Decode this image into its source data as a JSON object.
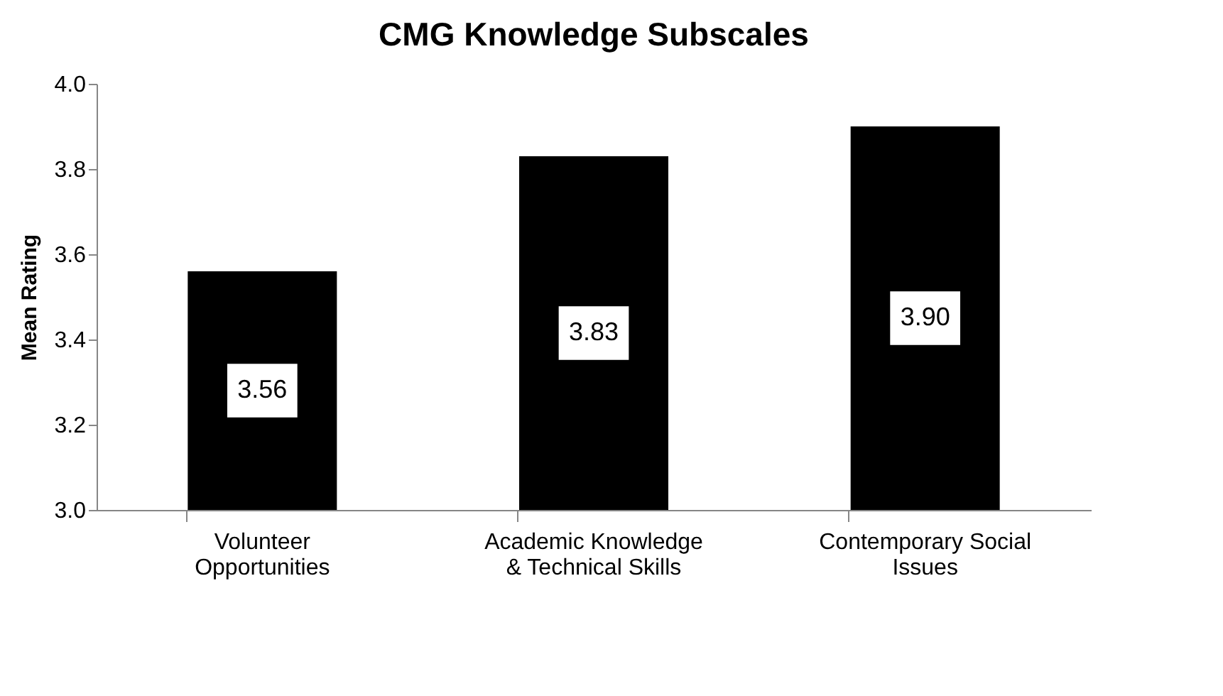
{
  "chart_data": {
    "type": "bar",
    "title": "CMG Knowledge Subscales",
    "ylabel": "Mean Rating",
    "categories": [
      "Volunteer\nOpportunities",
      "Academic Knowledge\n& Technical Skills",
      "Contemporary Social\nIssues"
    ],
    "values": [
      3.56,
      3.83,
      3.9
    ],
    "color": "#000000",
    "ylim": [
      3.0,
      4.0
    ],
    "yticks": [
      {
        "value": 3.0,
        "label": "3.0"
      },
      {
        "value": 3.2,
        "label": "3.2"
      },
      {
        "value": 3.4,
        "label": "3.4"
      },
      {
        "value": 3.6,
        "label": "3.6"
      },
      {
        "value": 3.8,
        "label": "3.8"
      },
      {
        "value": 4.0,
        "label": "4.0"
      }
    ],
    "value_labels": [
      "3.56",
      "3.83",
      "3.90"
    ]
  }
}
